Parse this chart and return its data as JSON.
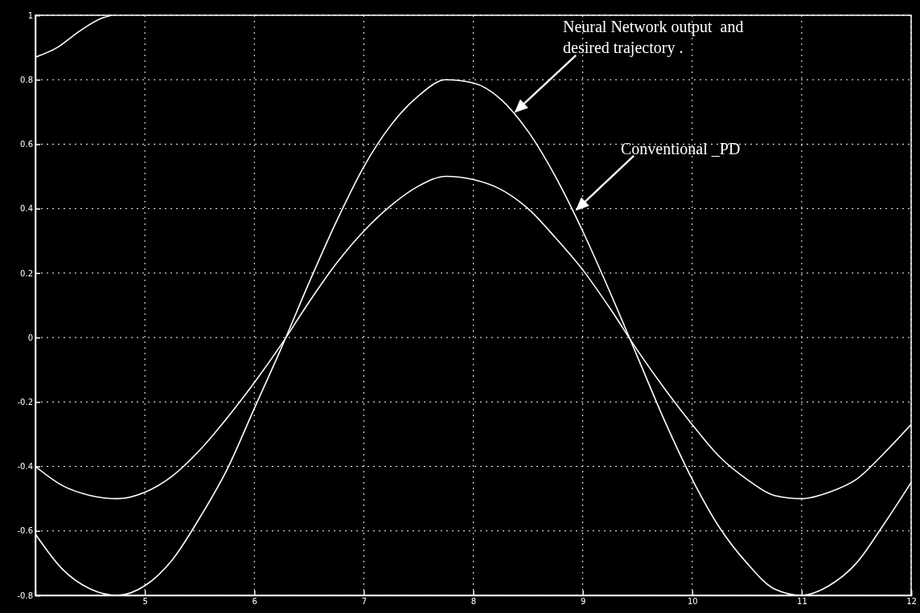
{
  "chart_data": {
    "type": "line",
    "x": [
      4,
      4.25,
      4.5,
      4.75,
      5,
      5.25,
      5.5,
      5.75,
      6,
      6.25,
      6.5,
      6.75,
      7,
      7.25,
      7.5,
      7.75,
      8,
      8.25,
      8.5,
      8.75,
      9,
      9.25,
      9.5,
      9.75,
      10,
      10.25,
      10.5,
      10.75,
      11,
      11.25,
      11.5,
      11.75,
      12
    ],
    "series": [
      {
        "color": "#ffffff",
        "values": [
          -0.61,
          -0.72,
          -0.78,
          -0.8,
          -0.77,
          -0.69,
          -0.56,
          -0.41,
          -0.22,
          -0.03,
          0.17,
          0.36,
          0.53,
          0.66,
          0.75,
          0.8,
          0.79,
          0.74,
          0.64,
          0.5,
          0.33,
          0.14,
          -0.06,
          -0.26,
          -0.44,
          -0.59,
          -0.7,
          -0.78,
          -0.8,
          -0.77,
          -0.7,
          -0.58,
          -0.45
        ]
      },
      {
        "color": "#ffffff",
        "values": [
          -0.4,
          -0.46,
          -0.49,
          -0.5,
          -0.48,
          -0.43,
          -0.35,
          -0.25,
          -0.14,
          -0.02,
          0.11,
          0.23,
          0.33,
          0.41,
          0.47,
          0.5,
          0.49,
          0.46,
          0.4,
          0.31,
          0.21,
          0.09,
          -0.04,
          -0.16,
          -0.27,
          -0.37,
          -0.44,
          -0.49,
          -0.5,
          -0.48,
          -0.44,
          -0.36,
          -0.27
        ]
      },
      {
        "color": "#ffffff",
        "x": [
          4,
          4.2,
          4.4,
          4.6,
          4.7
        ],
        "values": [
          0.87,
          0.9,
          0.95,
          0.99,
          1
        ]
      }
    ],
    "xlim": [
      4,
      12
    ],
    "xticks": [
      5,
      6,
      7,
      8,
      9,
      10,
      11,
      12
    ],
    "ylim": [
      -0.8,
      1
    ],
    "yticks": [
      -0.8,
      -0.6,
      -0.4,
      -0.2,
      0,
      0.2,
      0.4,
      0.6,
      0.8,
      1
    ],
    "grid": true,
    "marker": "none",
    "line_style": "solid",
    "annotations": [
      "Neural Network output  and desired trajectory .",
      "Conventional _PD"
    ]
  }
}
